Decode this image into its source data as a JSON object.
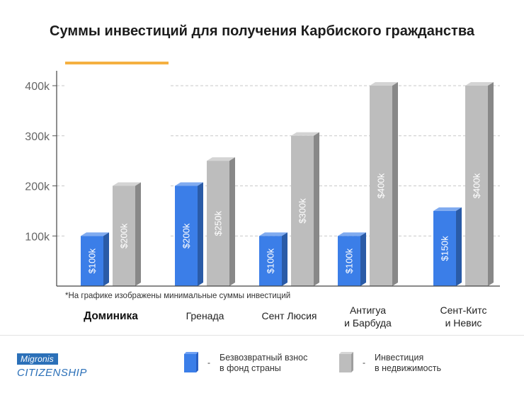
{
  "chart_data": {
    "type": "bar",
    "title": "Суммы инвестиций для получения Карбиского гражданства",
    "yticks": [
      "100k",
      "200k",
      "300k",
      "400k"
    ],
    "ylim": [
      0,
      450
    ],
    "grid": true,
    "highlight_category": "Доминика",
    "footnote": "*На графике изображены минимальные суммы инвестиций",
    "categories": [
      {
        "lines": [
          "Доминика"
        ],
        "bold": true
      },
      {
        "lines": [
          "Гренада"
        ],
        "bold": false
      },
      {
        "lines": [
          "Сент Люсия"
        ],
        "bold": false
      },
      {
        "lines": [
          "Антигуа",
          "и Барбуда"
        ],
        "bold": false
      },
      {
        "lines": [
          "Сент-Китс",
          "и Невис"
        ],
        "bold": false
      }
    ],
    "series": [
      {
        "key": "fund",
        "color": "#3b7ee8",
        "values": [
          100,
          200,
          100,
          100,
          150
        ],
        "labels": [
          "$100k",
          "$200k",
          "$100k",
          "$100k",
          "$150k"
        ]
      },
      {
        "key": "realty",
        "color": "#bdbdbd",
        "values": [
          200,
          250,
          300,
          400,
          400
        ],
        "labels": [
          "$200k",
          "$250k",
          "$300k",
          "$400k",
          "$400k"
        ]
      }
    ]
  },
  "legend": {
    "fund": {
      "line1": "Безвозвратный взнос",
      "line2": "в фонд страны",
      "color": "#3b7ee8"
    },
    "realty": {
      "line1": "Инвестиция",
      "line2": "в недвижимость",
      "color": "#bdbdbd"
    },
    "dash": "-"
  },
  "brand": {
    "top": "Migronis",
    "bottom": "CITIZENSHIP"
  }
}
